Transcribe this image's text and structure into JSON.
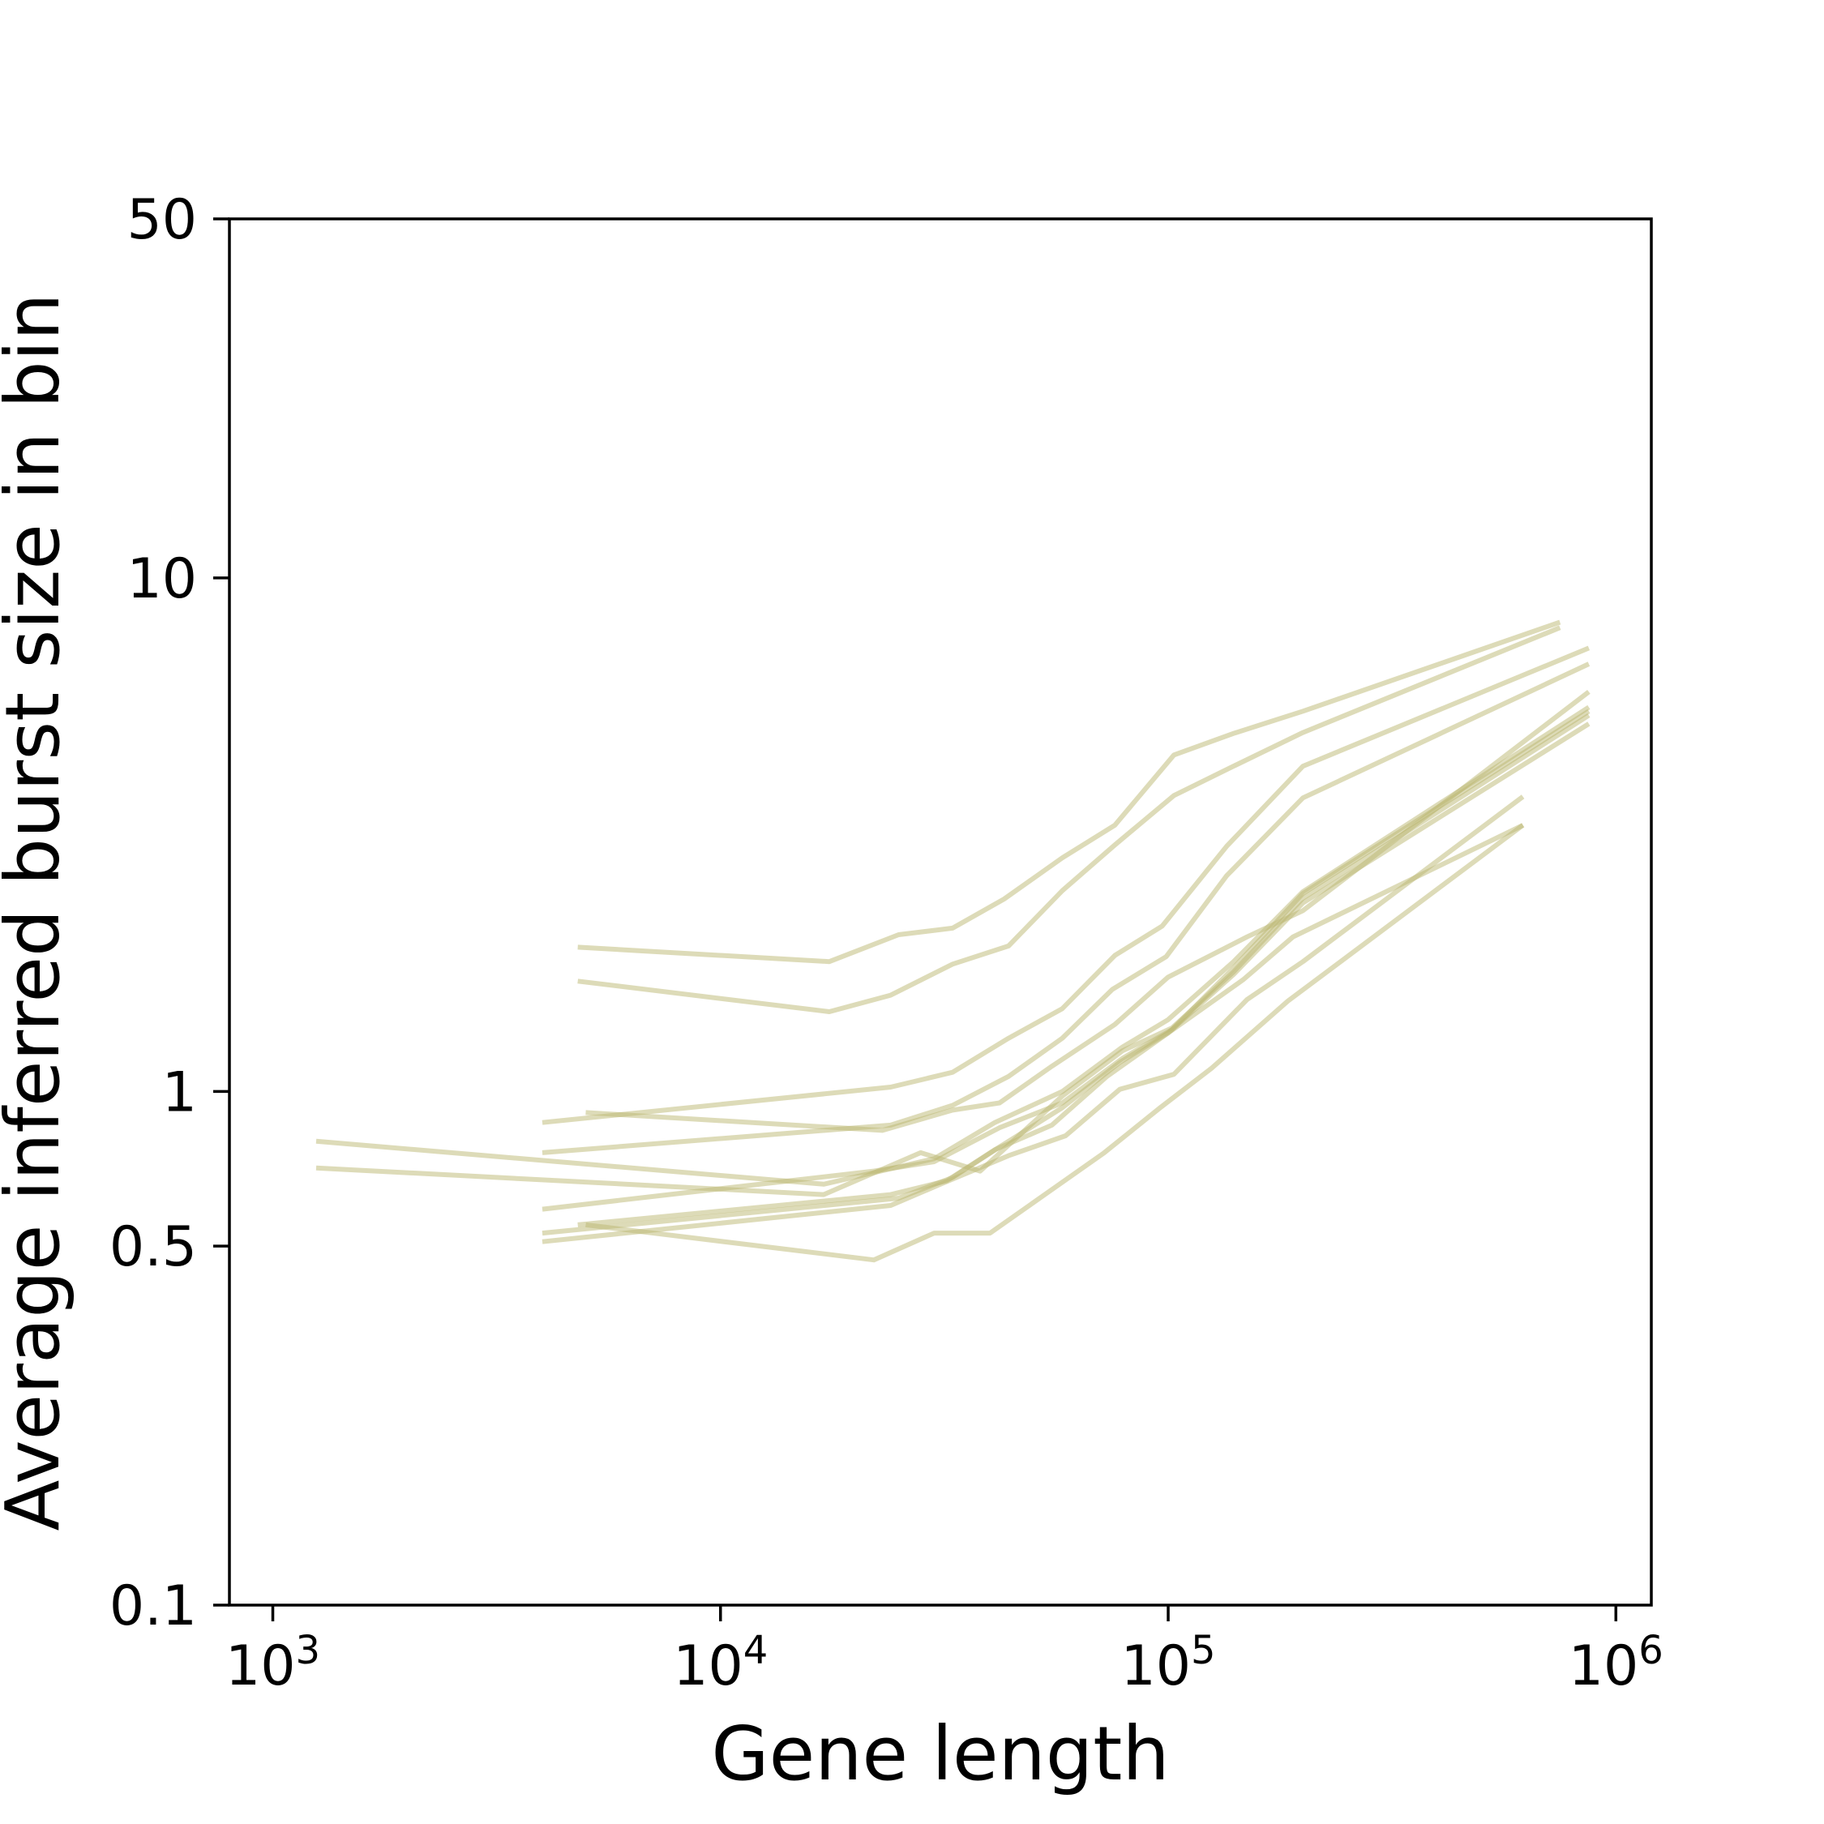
{
  "chart_data": {
    "type": "line",
    "xlabel": "Gene length",
    "ylabel": "Average inferred burst size in bin",
    "xscale": "log",
    "yscale": "log",
    "xlim": [
      800,
      1200000
    ],
    "ylim": [
      0.1,
      50
    ],
    "x_ticks": [
      {
        "value": 1000,
        "base": "10",
        "exp": "3"
      },
      {
        "value": 10000,
        "base": "10",
        "exp": "4"
      },
      {
        "value": 100000,
        "base": "10",
        "exp": "5"
      },
      {
        "value": 1000000,
        "base": "10",
        "exp": "6"
      }
    ],
    "y_ticks": [
      {
        "value": 0.1,
        "label": "0.1"
      },
      {
        "value": 0.5,
        "label": "0.5"
      },
      {
        "value": 1,
        "label": "1"
      },
      {
        "value": 10,
        "label": "10"
      },
      {
        "value": 50,
        "label": "50"
      }
    ],
    "grid": false,
    "legend": "none",
    "line_color": "#bcb872",
    "series": [
      {
        "x": [
          4800,
          17500,
          25000,
          33000,
          43000,
          58000,
          76000,
          103000,
          140000,
          200000,
          750000
        ],
        "y": [
          1.91,
          1.79,
          2.02,
          2.08,
          2.37,
          2.85,
          3.3,
          4.52,
          4.98,
          5.5,
          8.2
        ]
      },
      {
        "x": [
          4800,
          17500,
          24000,
          33000,
          44000,
          58000,
          76000,
          103000,
          140000,
          200000,
          750000
        ],
        "y": [
          1.64,
          1.43,
          1.54,
          1.77,
          1.92,
          2.46,
          3.02,
          3.77,
          4.3,
          5.0,
          8.0
        ]
      },
      {
        "x": [
          4000,
          24000,
          33000,
          44000,
          58000,
          76000,
          97000,
          135000,
          200000,
          870000
        ],
        "y": [
          0.87,
          1.02,
          1.09,
          1.27,
          1.45,
          1.84,
          2.1,
          3.0,
          4.3,
          7.3
        ]
      },
      {
        "x": [
          4000,
          24000,
          33000,
          44000,
          58000,
          75000,
          99000,
          135000,
          200000,
          870000
        ],
        "y": [
          0.76,
          0.86,
          0.94,
          1.07,
          1.27,
          1.58,
          1.83,
          2.63,
          3.73,
          6.8
        ]
      },
      {
        "x": [
          5000,
          23000,
          33000,
          42000,
          55000,
          76000,
          100000,
          150000,
          200000,
          870000
        ],
        "y": [
          0.91,
          0.84,
          0.92,
          0.95,
          1.12,
          1.35,
          1.67,
          2.0,
          2.25,
          6.0
        ]
      },
      {
        "x": [
          1250,
          17000,
          30000,
          41000,
          58000,
          79000,
          100000,
          140000,
          200000,
          870000
        ],
        "y": [
          0.8,
          0.66,
          0.74,
          0.87,
          1.0,
          1.22,
          1.38,
          1.79,
          2.45,
          5.6
        ]
      },
      {
        "x": [
          1250,
          17000,
          28000,
          38000,
          58000,
          79000,
          102000,
          140000,
          200000,
          870000
        ],
        "y": [
          0.71,
          0.63,
          0.76,
          0.7,
          0.98,
          1.2,
          1.33,
          1.71,
          2.38,
          5.4
        ]
      },
      {
        "x": [
          4000,
          22000,
          30000,
          42000,
          58000,
          79000,
          102000,
          140000,
          200000,
          870000
        ],
        "y": [
          0.59,
          0.7,
          0.73,
          0.85,
          0.95,
          1.16,
          1.32,
          1.74,
          2.43,
          5.5
        ]
      },
      {
        "x": [
          4000,
          25000,
          33000,
          42000,
          58000,
          78000,
          100000,
          140000,
          200000,
          870000
        ],
        "y": [
          0.53,
          0.62,
          0.68,
          0.78,
          0.93,
          1.14,
          1.3,
          1.69,
          2.33,
          5.2
        ]
      },
      {
        "x": [
          4000,
          24000,
          31000,
          44000,
          59000,
          78000,
          103000,
          150000,
          200000,
          620000
        ],
        "y": [
          0.51,
          0.6,
          0.66,
          0.75,
          0.82,
          1.01,
          1.08,
          1.51,
          1.79,
          3.75
        ]
      },
      {
        "x": [
          5000,
          22000,
          30000,
          40000,
          53000,
          72000,
          96000,
          125000,
          185000,
          620000
        ],
        "y": [
          0.55,
          0.47,
          0.53,
          0.53,
          0.63,
          0.76,
          0.93,
          1.11,
          1.5,
          3.3
        ]
      },
      {
        "x": [
          4800,
          24000,
          32000,
          41000,
          55000,
          73000,
          100000,
          147000,
          190000,
          620000
        ],
        "y": [
          0.55,
          0.63,
          0.67,
          0.77,
          0.86,
          1.07,
          1.3,
          1.65,
          2.0,
          3.3
        ]
      }
    ]
  }
}
